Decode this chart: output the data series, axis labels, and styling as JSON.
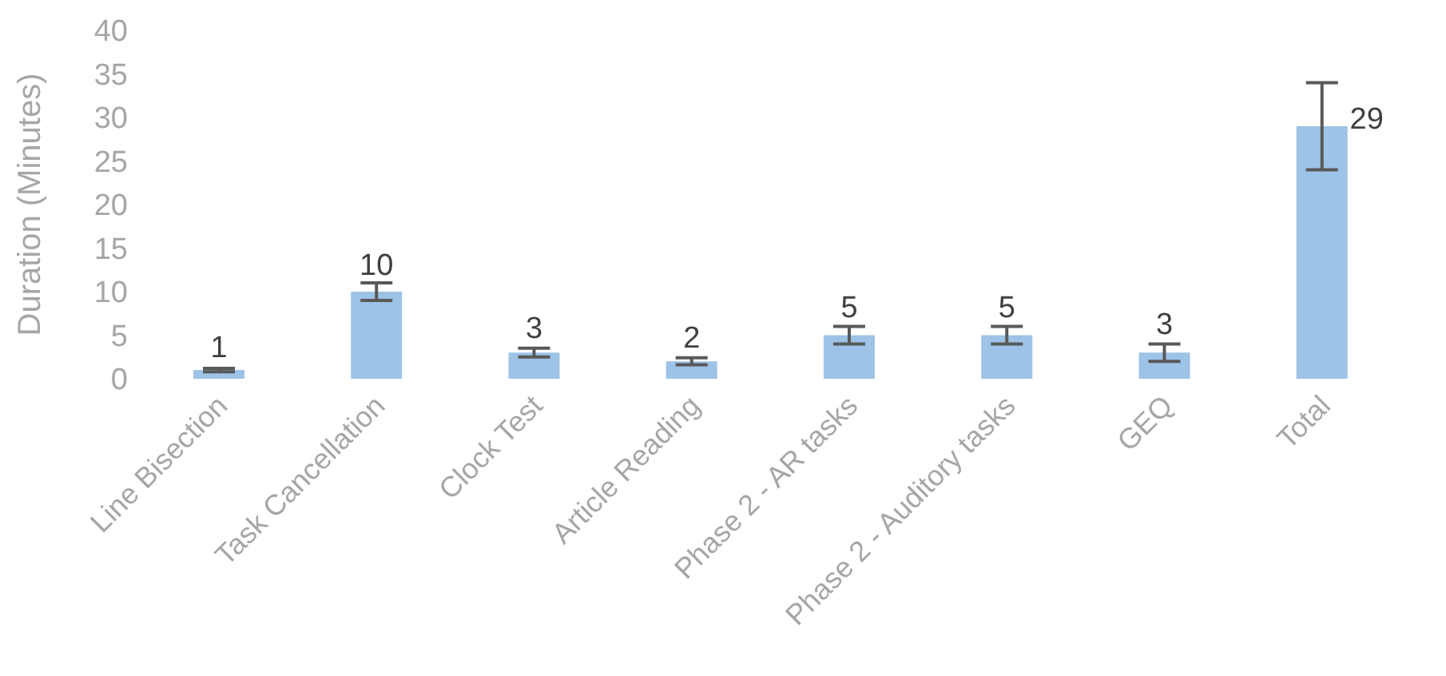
{
  "chart_data": {
    "type": "bar",
    "ylabel": "Duration (Minutes)",
    "categories": [
      "Line Bisection",
      "Task Cancellation",
      "Clock Test",
      "Article Reading",
      "Phase 2 - AR tasks",
      "Phase 2 - Auditory tasks",
      "GEQ",
      "Total"
    ],
    "values": [
      1,
      10,
      3,
      2,
      5,
      5,
      3,
      29
    ],
    "errors": [
      0.2,
      1,
      0.5,
      0.4,
      1,
      1,
      1,
      5
    ],
    "color": "#9dc3e6",
    "ylim": [
      0,
      40
    ],
    "yticks": [
      0,
      5,
      10,
      15,
      20,
      25,
      30,
      35,
      40
    ],
    "data_labels": true
  }
}
